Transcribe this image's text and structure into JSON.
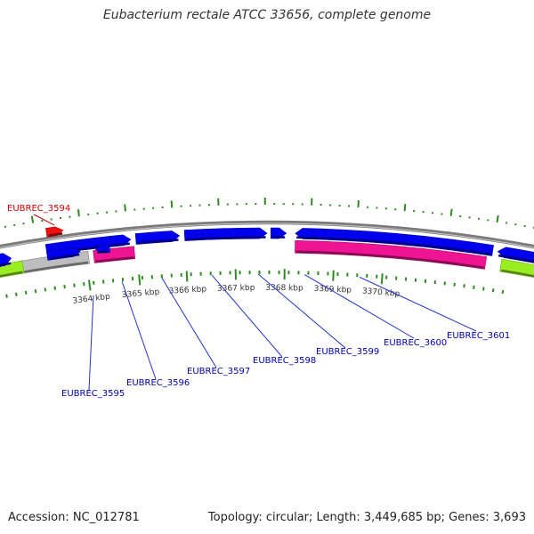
{
  "header": {
    "title": "Eubacterium rectale ATCC 33656, complete genome"
  },
  "footer": {
    "accession": "Accession: NC_012781",
    "summary": "Topology: circular; Length: 3,449,685 bp; Genes: 3,693"
  },
  "colors": {
    "backbone": "#7a7a7a",
    "tick": "#2e8b20",
    "cds": "#0000ee",
    "highlight": "#ee1111",
    "rna": "#ee1493",
    "pseudo": "#bdbdbd",
    "other": "#99ee22",
    "label_blue": "#0000aa",
    "label_red": "#cc0000",
    "leader_blue": "#2233cc"
  },
  "scale": {
    "ticks": [
      {
        "label": "3364 kbp"
      },
      {
        "label": "3365 kbp"
      },
      {
        "label": "3366 kbp"
      },
      {
        "label": "3367 kbp"
      },
      {
        "label": "3368 kbp"
      },
      {
        "label": "3369 kbp"
      },
      {
        "label": "3370 kbp"
      }
    ]
  },
  "genes": [
    {
      "name": "EUBREC_3594",
      "color": "red"
    },
    {
      "name": "EUBREC_3595",
      "color": "blue"
    },
    {
      "name": "EUBREC_3596",
      "color": "blue"
    },
    {
      "name": "EUBREC_3597",
      "color": "blue"
    },
    {
      "name": "EUBREC_3598",
      "color": "blue"
    },
    {
      "name": "EUBREC_3599",
      "color": "blue"
    },
    {
      "name": "EUBREC_3600",
      "color": "blue"
    },
    {
      "name": "EUBREC_3601",
      "color": "blue"
    }
  ]
}
